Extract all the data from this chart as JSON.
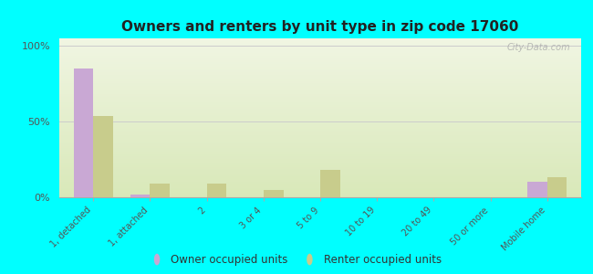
{
  "title": "Owners and renters by unit type in zip code 17060",
  "categories": [
    "1, detached",
    "1, attached",
    "2",
    "3 or 4",
    "5 to 9",
    "10 to 19",
    "20 to 49",
    "50 or more",
    "Mobile home"
  ],
  "owner_values": [
    85,
    2,
    0,
    0,
    0,
    0,
    0,
    0,
    10
  ],
  "renter_values": [
    54,
    9,
    9,
    5,
    18,
    0,
    0,
    0,
    13
  ],
  "owner_color": "#c9a8d4",
  "renter_color": "#c8cc8c",
  "background_color": "#00ffff",
  "grad_top": "#f0f5e2",
  "grad_bottom": "#d8e8b8",
  "ylabel_ticks": [
    "0%",
    "50%",
    "100%"
  ],
  "ytick_vals": [
    0,
    50,
    100
  ],
  "ylim": [
    0,
    105
  ],
  "bar_width": 0.35,
  "legend_owner": "Owner occupied units",
  "legend_renter": "Renter occupied units",
  "watermark": "City-Data.com"
}
